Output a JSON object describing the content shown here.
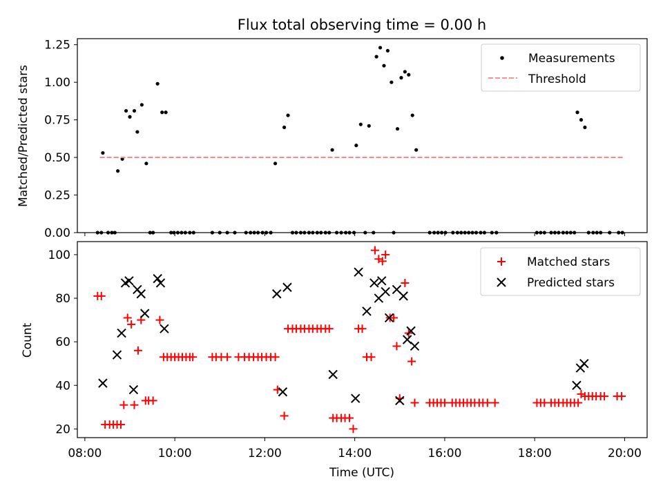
{
  "title": "Flux total observing time = 0.00 h",
  "chart_data": [
    {
      "type": "scatter",
      "title": "Flux total observing time = 0.00 h",
      "xlabel": "",
      "ylabel": "Matched/Predicted stars",
      "x_unit": "time (UTC)",
      "xlim": [
        "07:50",
        "20:30"
      ],
      "ylim": [
        0,
        1.29
      ],
      "xticks": [
        "08:00",
        "10:00",
        "12:00",
        "14:00",
        "16:00",
        "18:00",
        "20:00"
      ],
      "yticks": [
        "0.00",
        "0.25",
        "0.50",
        "0.75",
        "1.00",
        "1.25"
      ],
      "grid": false,
      "legend": {
        "position": "top-right",
        "entries": [
          "Measurements",
          "Threshold"
        ]
      },
      "series": [
        {
          "name": "Measurements",
          "kind": "scatter",
          "color": "#000000",
          "points": [
            [
              "08:17",
              0
            ],
            [
              "08:22",
              0
            ],
            [
              "08:24",
              0.53
            ],
            [
              "08:31",
              0
            ],
            [
              "08:36",
              0
            ],
            [
              "08:40",
              0
            ],
            [
              "08:44",
              0.41
            ],
            [
              "08:50",
              0.49
            ],
            [
              "08:55",
              0.81
            ],
            [
              "09:00",
              0.77
            ],
            [
              "09:06",
              0.81
            ],
            [
              "09:10",
              0.67
            ],
            [
              "09:16",
              0.85
            ],
            [
              "09:22",
              0.46
            ],
            [
              "09:27",
              0
            ],
            [
              "09:31",
              0
            ],
            [
              "09:37",
              0.99
            ],
            [
              "09:43",
              0.8
            ],
            [
              "09:48",
              0.8
            ],
            [
              "09:55",
              0
            ],
            [
              "09:59",
              0
            ],
            [
              "10:04",
              0
            ],
            [
              "10:09",
              0
            ],
            [
              "10:14",
              0
            ],
            [
              "10:20",
              0
            ],
            [
              "10:25",
              0
            ],
            [
              "10:50",
              0
            ],
            [
              "11:00",
              0
            ],
            [
              "11:10",
              0
            ],
            [
              "11:20",
              0
            ],
            [
              "11:35",
              0
            ],
            [
              "11:41",
              0
            ],
            [
              "11:46",
              0
            ],
            [
              "11:51",
              0
            ],
            [
              "11:57",
              0
            ],
            [
              "12:02",
              0
            ],
            [
              "12:08",
              0
            ],
            [
              "12:14",
              0.46
            ],
            [
              "12:26",
              0.7
            ],
            [
              "12:31",
              0.78
            ],
            [
              "12:37",
              0
            ],
            [
              "12:42",
              0
            ],
            [
              "12:48",
              0
            ],
            [
              "12:53",
              0
            ],
            [
              "12:59",
              0
            ],
            [
              "13:04",
              0
            ],
            [
              "13:10",
              0
            ],
            [
              "13:15",
              0
            ],
            [
              "13:21",
              0
            ],
            [
              "13:26",
              0
            ],
            [
              "13:30",
              0.55
            ],
            [
              "13:36",
              0
            ],
            [
              "13:42",
              0
            ],
            [
              "13:48",
              0
            ],
            [
              "13:53",
              0
            ],
            [
              "13:59",
              0
            ],
            [
              "14:02",
              0.58
            ],
            [
              "14:08",
              0.72
            ],
            [
              "14:14",
              0
            ],
            [
              "14:19",
              0.71
            ],
            [
              "14:25",
              0
            ],
            [
              "14:29",
              1.17
            ],
            [
              "14:34",
              1.23
            ],
            [
              "14:39",
              1.11
            ],
            [
              "14:44",
              1.21
            ],
            [
              "14:49",
              1.0
            ],
            [
              "14:52",
              0
            ],
            [
              "14:57",
              0.69
            ],
            [
              "15:02",
              1.03
            ],
            [
              "15:07",
              1.07
            ],
            [
              "15:12",
              1.05
            ],
            [
              "15:17",
              0.78
            ],
            [
              "15:22",
              0.55
            ],
            [
              "15:40",
              0
            ],
            [
              "15:46",
              0
            ],
            [
              "15:51",
              0
            ],
            [
              "15:56",
              0
            ],
            [
              "16:01",
              0
            ],
            [
              "16:11",
              0
            ],
            [
              "16:17",
              0
            ],
            [
              "16:22",
              0
            ],
            [
              "16:27",
              0
            ],
            [
              "16:32",
              0
            ],
            [
              "16:37",
              0
            ],
            [
              "16:42",
              0
            ],
            [
              "16:48",
              0
            ],
            [
              "16:53",
              0
            ],
            [
              "17:03",
              0
            ],
            [
              "17:09",
              0
            ],
            [
              "18:03",
              0
            ],
            [
              "18:08",
              0
            ],
            [
              "18:13",
              0
            ],
            [
              "18:22",
              0
            ],
            [
              "18:27",
              0
            ],
            [
              "18:32",
              0
            ],
            [
              "18:38",
              0
            ],
            [
              "18:43",
              0
            ],
            [
              "18:48",
              0
            ],
            [
              "18:53",
              0
            ],
            [
              "18:57",
              0.8
            ],
            [
              "19:02",
              0.75
            ],
            [
              "19:07",
              0.7
            ],
            [
              "19:12",
              0
            ],
            [
              "19:18",
              0
            ],
            [
              "19:23",
              0
            ],
            [
              "19:28",
              0
            ],
            [
              "19:40",
              0
            ],
            [
              "19:52",
              0
            ],
            [
              "19:57",
              0
            ]
          ]
        },
        {
          "name": "Threshold",
          "kind": "line",
          "style": "dashed",
          "color": "#ff7f7f",
          "points": [
            [
              "08:20",
              0.5
            ],
            [
              "19:58",
              0.5
            ]
          ]
        }
      ]
    },
    {
      "type": "scatter",
      "title": "",
      "xlabel": "Time (UTC)",
      "ylabel": "Count",
      "x_unit": "time (UTC)",
      "xlim": [
        "07:50",
        "20:30"
      ],
      "ylim": [
        16,
        106
      ],
      "xticks": [
        "08:00",
        "10:00",
        "12:00",
        "14:00",
        "16:00",
        "18:00",
        "20:00"
      ],
      "yticks": [
        "20",
        "40",
        "60",
        "80",
        "100"
      ],
      "grid": false,
      "legend": {
        "position": "top-right",
        "entries": [
          "Matched stars",
          "Predicted stars"
        ]
      },
      "series": [
        {
          "name": "Matched stars",
          "marker": "plus",
          "color": "#ff0000",
          "points": [
            [
              "08:17",
              81
            ],
            [
              "08:22",
              81
            ],
            [
              "08:27",
              22
            ],
            [
              "08:33",
              22
            ],
            [
              "08:38",
              22
            ],
            [
              "08:43",
              22
            ],
            [
              "08:48",
              22
            ],
            [
              "08:52",
              31
            ],
            [
              "08:57",
              71
            ],
            [
              "09:02",
              68
            ],
            [
              "09:06",
              31
            ],
            [
              "09:11",
              56
            ],
            [
              "09:15",
              70
            ],
            [
              "09:21",
              33
            ],
            [
              "09:25",
              33
            ],
            [
              "09:31",
              33
            ],
            [
              "09:40",
              70
            ],
            [
              "09:45",
              53
            ],
            [
              "09:50",
              53
            ],
            [
              "09:55",
              53
            ],
            [
              "10:00",
              53
            ],
            [
              "10:05",
              53
            ],
            [
              "10:10",
              53
            ],
            [
              "10:15",
              53
            ],
            [
              "10:20",
              53
            ],
            [
              "10:24",
              53
            ],
            [
              "10:50",
              53
            ],
            [
              "10:55",
              53
            ],
            [
              "11:02",
              53
            ],
            [
              "11:10",
              53
            ],
            [
              "11:25",
              53
            ],
            [
              "11:33",
              53
            ],
            [
              "11:39",
              53
            ],
            [
              "11:45",
              53
            ],
            [
              "11:51",
              53
            ],
            [
              "11:56",
              53
            ],
            [
              "12:02",
              53
            ],
            [
              "12:08",
              53
            ],
            [
              "12:14",
              53
            ],
            [
              "12:17",
              38
            ],
            [
              "12:26",
              26
            ],
            [
              "12:31",
              66
            ],
            [
              "12:37",
              66
            ],
            [
              "12:42",
              66
            ],
            [
              "12:48",
              66
            ],
            [
              "12:53",
              66
            ],
            [
              "12:59",
              66
            ],
            [
              "13:04",
              66
            ],
            [
              "13:10",
              66
            ],
            [
              "13:15",
              66
            ],
            [
              "13:21",
              66
            ],
            [
              "13:26",
              66
            ],
            [
              "13:31",
              25
            ],
            [
              "13:36",
              25
            ],
            [
              "13:42",
              25
            ],
            [
              "13:47",
              25
            ],
            [
              "13:53",
              25
            ],
            [
              "13:58",
              20
            ],
            [
              "14:05",
              66
            ],
            [
              "14:10",
              66
            ],
            [
              "14:16",
              53
            ],
            [
              "14:22",
              53
            ],
            [
              "14:27",
              102
            ],
            [
              "14:32",
              98
            ],
            [
              "14:37",
              97
            ],
            [
              "14:41",
              100
            ],
            [
              "14:47",
              71
            ],
            [
              "14:52",
              71
            ],
            [
              "14:56",
              58
            ],
            [
              "15:00",
              34
            ],
            [
              "15:07",
              87
            ],
            [
              "15:12",
              64
            ],
            [
              "15:16",
              51
            ],
            [
              "15:20",
              32
            ],
            [
              "15:40",
              32
            ],
            [
              "15:45",
              32
            ],
            [
              "15:50",
              32
            ],
            [
              "15:55",
              32
            ],
            [
              "16:00",
              32
            ],
            [
              "16:10",
              32
            ],
            [
              "16:15",
              32
            ],
            [
              "16:20",
              32
            ],
            [
              "16:25",
              32
            ],
            [
              "16:30",
              32
            ],
            [
              "16:35",
              32
            ],
            [
              "16:40",
              32
            ],
            [
              "16:46",
              32
            ],
            [
              "16:51",
              32
            ],
            [
              "16:57",
              32
            ],
            [
              "17:07",
              32
            ],
            [
              "18:03",
              32
            ],
            [
              "18:08",
              32
            ],
            [
              "18:13",
              32
            ],
            [
              "18:22",
              32
            ],
            [
              "18:27",
              32
            ],
            [
              "18:32",
              32
            ],
            [
              "18:38",
              32
            ],
            [
              "18:43",
              32
            ],
            [
              "18:48",
              32
            ],
            [
              "18:53",
              32
            ],
            [
              "18:58",
              32
            ],
            [
              "19:02",
              36
            ],
            [
              "19:07",
              35
            ],
            [
              "19:12",
              35
            ],
            [
              "19:17",
              35
            ],
            [
              "19:22",
              35
            ],
            [
              "19:28",
              35
            ],
            [
              "19:33",
              35
            ],
            [
              "19:50",
              35
            ],
            [
              "19:56",
              35
            ]
          ]
        },
        {
          "name": "Predicted stars",
          "marker": "x",
          "color": "#000000",
          "points": [
            [
              "08:24",
              41
            ],
            [
              "08:43",
              54
            ],
            [
              "08:49",
              64
            ],
            [
              "08:54",
              87
            ],
            [
              "08:59",
              88
            ],
            [
              "09:05",
              38
            ],
            [
              "09:10",
              84
            ],
            [
              "09:15",
              82
            ],
            [
              "09:20",
              73
            ],
            [
              "09:37",
              89
            ],
            [
              "09:41",
              87
            ],
            [
              "09:46",
              66
            ],
            [
              "12:16",
              82
            ],
            [
              "12:24",
              37
            ],
            [
              "12:30",
              85
            ],
            [
              "13:31",
              45
            ],
            [
              "14:01",
              34
            ],
            [
              "14:05",
              92
            ],
            [
              "14:16",
              74
            ],
            [
              "14:26",
              87
            ],
            [
              "14:32",
              80
            ],
            [
              "14:36",
              88
            ],
            [
              "14:41",
              83
            ],
            [
              "14:46",
              71
            ],
            [
              "14:56",
              84
            ],
            [
              "15:00",
              33
            ],
            [
              "15:05",
              81
            ],
            [
              "15:10",
              61
            ],
            [
              "15:15",
              65
            ],
            [
              "15:20",
              58
            ],
            [
              "18:56",
              40
            ],
            [
              "19:01",
              48
            ],
            [
              "19:06",
              50
            ]
          ]
        }
      ]
    }
  ]
}
